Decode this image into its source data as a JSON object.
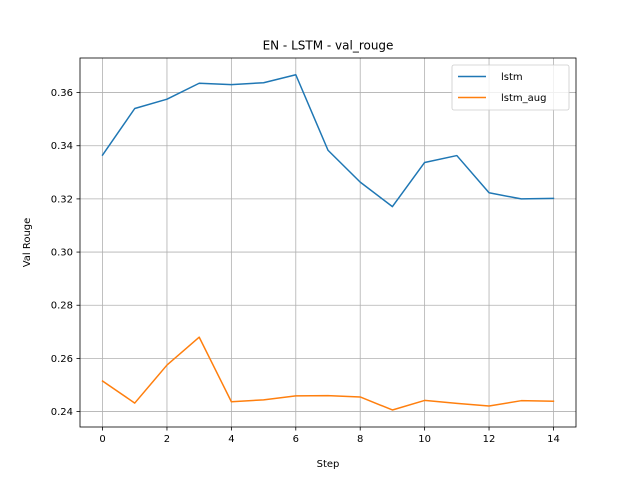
{
  "chart_data": {
    "type": "line",
    "title": "EN - LSTM - val_rouge",
    "xlabel": "Step",
    "ylabel": "Val Rouge",
    "x": [
      0,
      1,
      2,
      3,
      4,
      5,
      6,
      7,
      8,
      9,
      10,
      11,
      12,
      13,
      14
    ],
    "xlim": [
      -0.7,
      14.7
    ],
    "ylim": [
      0.2342,
      0.373
    ],
    "xticks": [
      0,
      2,
      4,
      6,
      8,
      10,
      12,
      14
    ],
    "yticks": [
      0.24,
      0.26,
      0.28,
      0.3,
      0.32,
      0.34,
      0.36
    ],
    "grid": true,
    "legend": "top-right",
    "series": [
      {
        "name": "lstm",
        "color": "#1f77b4",
        "values": [
          0.3365,
          0.354,
          0.3575,
          0.3635,
          0.363,
          0.3637,
          0.3667,
          0.3383,
          0.3263,
          0.3171,
          0.3337,
          0.3363,
          0.3223,
          0.32,
          0.3202
        ]
      },
      {
        "name": "lstm_aug",
        "color": "#ff7f0e",
        "values": [
          0.2515,
          0.2432,
          0.2575,
          0.268,
          0.2437,
          0.2444,
          0.2459,
          0.246,
          0.2455,
          0.2406,
          0.2442,
          0.2431,
          0.2421,
          0.2441,
          0.2439
        ]
      }
    ]
  }
}
